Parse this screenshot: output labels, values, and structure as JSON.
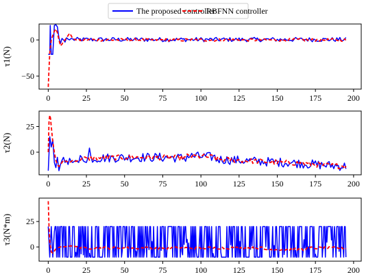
{
  "chart_data": {
    "type": "line",
    "legend": {
      "placement": "top-center",
      "entries": [
        {
          "name": "The proposed controller",
          "color": "#0000ff",
          "style": "solid"
        },
        {
          "name": "RBFNN controller",
          "color": "#ff0000",
          "style": "dashed"
        }
      ]
    },
    "x_ticks": [
      "0",
      "25",
      "50",
      "75",
      "100",
      "125",
      "150",
      "175",
      "200"
    ],
    "xlim": [
      -6,
      205
    ],
    "subplots": [
      {
        "ylabel": "τ1(N)",
        "ylim": [
          -68,
          22
        ],
        "y_ticks": [
          {
            "value": 0,
            "label": "0"
          },
          {
            "value": -50,
            "label": "−50"
          }
        ],
        "series": [
          {
            "name": "The proposed controller",
            "x": [
              0,
              1,
              1.3,
              2,
              3,
              4,
              5,
              6,
              7,
              8,
              9,
              10,
              11,
              12,
              13,
              14,
              15
            ],
            "y": [
              -20,
              -20,
              20,
              -20,
              -20,
              20,
              21,
              18,
              3,
              -5,
              2,
              0,
              -3,
              3,
              1,
              0,
              2
            ]
          },
          {
            "name": "RBFNN controller",
            "x": [
              0,
              0.5,
              1,
              2,
              3,
              4,
              5,
              6,
              7,
              8,
              9,
              10,
              11,
              12,
              13,
              14,
              15,
              16,
              18,
              20
            ],
            "y": [
              -65,
              -40,
              -18,
              0,
              6,
              12,
              15,
              10,
              0,
              -8,
              -6,
              -2,
              0,
              3,
              6,
              9,
              6,
              2,
              0,
              1
            ]
          }
        ]
      },
      {
        "ylabel": "τ2(N)",
        "ylim": [
          -22,
          40
        ],
        "y_ticks": [
          {
            "value": 25,
            "label": "25"
          },
          {
            "value": 0,
            "label": "0"
          }
        ],
        "series": [
          {
            "name": "The proposed controller",
            "x": [
              0,
              1,
              2,
              3,
              4,
              5,
              6,
              7,
              8,
              9,
              10,
              11,
              12,
              13,
              14,
              15,
              16,
              18,
              20
            ],
            "y": [
              -18,
              15,
              5,
              12,
              -10,
              -15,
              -5,
              -18,
              -12,
              -8,
              -5,
              -10,
              -8,
              -12,
              -6,
              -9,
              -10,
              -8,
              -10
            ]
          },
          {
            "name": "RBFNN controller",
            "x": [
              0,
              0.5,
              1,
              1.5,
              2,
              3,
              4,
              5,
              6,
              7,
              8,
              9,
              10,
              12,
              14,
              16,
              18,
              20
            ],
            "y": [
              0,
              30,
              36,
              33,
              25,
              10,
              0,
              -8,
              -12,
              -14,
              -12,
              -10,
              -8,
              -9,
              -10,
              -8,
              -9,
              -8
            ]
          }
        ]
      },
      {
        "ylabel": "τ3(N*m)",
        "ylim": [
          -14,
          48
        ],
        "y_ticks": [
          {
            "value": 25,
            "label": "25"
          },
          {
            "value": 0,
            "label": "0"
          }
        ],
        "series": [
          {
            "name": "The proposed controller",
            "x": [
              0,
              1,
              2,
              3,
              4
            ],
            "y": [
              20,
              -10,
              20,
              -10,
              15
            ]
          },
          {
            "name": "RBFNN controller",
            "x": [
              0,
              0.5,
              1,
              2,
              3,
              4,
              5,
              6,
              8,
              10,
              15,
              20
            ],
            "y": [
              45,
              20,
              5,
              -5,
              -6,
              -4,
              -2,
              -1,
              0,
              0,
              1,
              0
            ]
          }
        ]
      }
    ]
  }
}
